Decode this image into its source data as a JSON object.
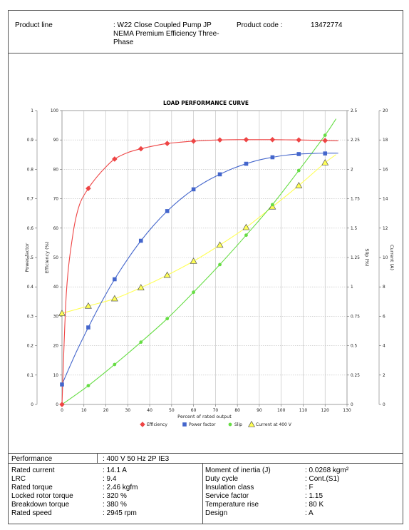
{
  "header": {
    "product_line_label": "Product line",
    "product_line_value": ": W22 Close Coupled Pump JP NEMA Premium Efficiency Three-Phase",
    "product_code_label": "Product code :",
    "product_code_value": "13472774"
  },
  "chart_data": {
    "type": "line",
    "title": "LOAD PERFORMANCE CURVE",
    "xlabel": "Percent of rated output",
    "xlim": [
      0,
      130
    ],
    "x_ticks": [
      "0",
      "10",
      "20",
      "30",
      "40",
      "50",
      "60",
      "70",
      "80",
      "90",
      "100",
      "110",
      "120",
      "130"
    ],
    "axes": {
      "power_factor": {
        "label": "Power factor",
        "ticks": [
          "0",
          "0.1",
          "0.2",
          "0.3",
          "0.4",
          "0.5",
          "0.6",
          "0.7",
          "0.8",
          "0.9",
          "1"
        ]
      },
      "efficiency": {
        "label": "Efficiency (%)",
        "ticks": [
          "0",
          "10",
          "20",
          "30",
          "40",
          "50",
          "60",
          "70",
          "80",
          "90",
          "100"
        ]
      },
      "slip": {
        "label": "Slip (%)",
        "ticks": [
          "0",
          "0.25",
          "0.5",
          "0.75",
          "1",
          "1.25",
          "1.5",
          "1.75",
          "2",
          "2.25",
          "2.5"
        ]
      },
      "current": {
        "label": "Current (A)",
        "ticks": [
          "0",
          "2",
          "4",
          "6",
          "8",
          "10",
          "12",
          "14",
          "16",
          "18",
          "20"
        ]
      }
    },
    "grid": true,
    "legend_position": "bottom",
    "series": [
      {
        "name": "Efficiency",
        "color": "#ee4444",
        "marker": "diamond",
        "axis_max": 100,
        "x": [
          0,
          12,
          24,
          36,
          48,
          60,
          72,
          84,
          96,
          108,
          120
        ],
        "values": [
          0,
          73.5,
          83.5,
          87,
          88.8,
          89.6,
          90,
          90.1,
          90.1,
          90,
          89.8
        ],
        "curve_x": [
          0,
          2,
          5,
          8,
          12,
          16,
          20,
          24,
          30,
          36,
          42,
          48,
          55,
          60,
          66,
          72,
          80,
          84,
          90,
          96,
          102,
          108,
          114,
          120,
          126
        ],
        "curve_y": [
          0,
          38,
          58,
          68,
          73.5,
          77.5,
          80.8,
          83.5,
          85.7,
          87,
          88,
          88.8,
          89.3,
          89.6,
          89.85,
          90,
          90.1,
          90.1,
          90.1,
          90.1,
          90.05,
          90,
          89.9,
          89.8,
          89.7
        ]
      },
      {
        "name": "Power factor",
        "color": "#4466cc",
        "marker": "square",
        "axis_max": 1,
        "x": [
          0,
          12,
          24,
          36,
          48,
          60,
          72,
          84,
          96,
          108,
          120
        ],
        "values": [
          0.068,
          0.262,
          0.426,
          0.557,
          0.658,
          0.732,
          0.783,
          0.819,
          0.841,
          0.852,
          0.854
        ],
        "curve_x": [
          0,
          6,
          12,
          18,
          24,
          30,
          36,
          42,
          48,
          54,
          60,
          66,
          72,
          78,
          84,
          90,
          96,
          102,
          108,
          114,
          120,
          126
        ],
        "curve_y": [
          0.068,
          0.17,
          0.262,
          0.348,
          0.426,
          0.495,
          0.557,
          0.611,
          0.658,
          0.698,
          0.732,
          0.76,
          0.783,
          0.803,
          0.819,
          0.832,
          0.841,
          0.848,
          0.852,
          0.854,
          0.855,
          0.855
        ]
      },
      {
        "name": "Slip",
        "color": "#66dd44",
        "marker": "circle",
        "axis_max": 2.5,
        "x": [
          0,
          12,
          24,
          36,
          48,
          60,
          72,
          84,
          96,
          108,
          120
        ],
        "values": [
          0,
          0.16,
          0.34,
          0.53,
          0.73,
          0.955,
          1.19,
          1.44,
          1.7,
          1.99,
          2.29
        ],
        "curve_x": [
          0,
          12,
          24,
          36,
          48,
          60,
          72,
          84,
          96,
          108,
          120,
          125
        ],
        "curve_y": [
          0,
          0.16,
          0.34,
          0.53,
          0.73,
          0.955,
          1.19,
          1.44,
          1.7,
          1.99,
          2.29,
          2.43
        ]
      },
      {
        "name": "Current at 400 V",
        "color": "#ffff55",
        "marker": "triangle",
        "axis_max": 20,
        "x": [
          0,
          12,
          24,
          36,
          48,
          60,
          72,
          84,
          96,
          108,
          120
        ],
        "values": [
          6.2,
          6.7,
          7.2,
          7.95,
          8.8,
          9.75,
          10.85,
          12.05,
          13.45,
          14.9,
          16.45
        ],
        "curve_x": [
          0,
          12,
          24,
          36,
          48,
          60,
          72,
          84,
          96,
          108,
          120,
          125
        ],
        "curve_y": [
          6.2,
          6.7,
          7.2,
          7.95,
          8.8,
          9.75,
          10.85,
          12.05,
          13.45,
          14.9,
          16.45,
          17
        ]
      }
    ]
  },
  "performance": {
    "label": "Performance",
    "value": ": 400 V 50 Hz 2P IE3"
  },
  "specs_left": [
    {
      "label": "Rated current",
      "value": ": 14.1 A"
    },
    {
      "label": "LRC",
      "value": ": 9.4"
    },
    {
      "label": "Rated torque",
      "value": ": 2.46 kgfm"
    },
    {
      "label": "Locked rotor torque",
      "value": ": 320 %"
    },
    {
      "label": "Breakdown torque",
      "value": ": 380 %"
    },
    {
      "label": "Rated speed",
      "value": ": 2945 rpm"
    }
  ],
  "specs_right": [
    {
      "label": "Moment of inertia (J)",
      "value": ": 0.0268 kgm²"
    },
    {
      "label": "Duty cycle",
      "value": ": Cont.(S1)"
    },
    {
      "label": "Insulation class",
      "value": ": F"
    },
    {
      "label": "Service factor",
      "value": ": 1.15"
    },
    {
      "label": "Temperature rise",
      "value": ": 80 K"
    },
    {
      "label": "Design",
      "value": ": A"
    }
  ]
}
